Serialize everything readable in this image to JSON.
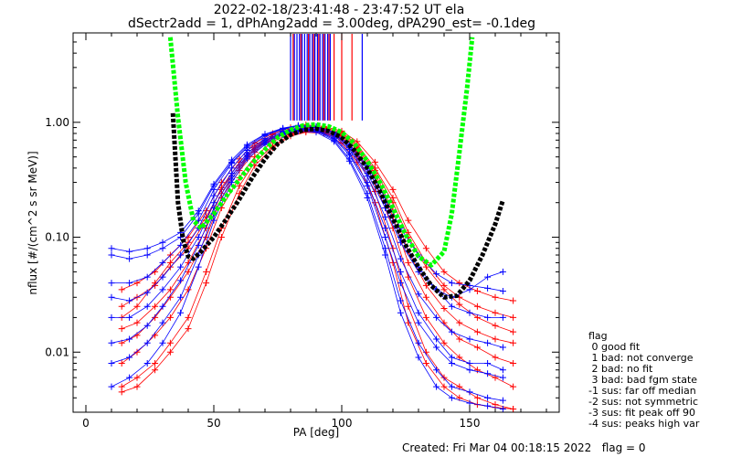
{
  "chart_data": {
    "type": "line",
    "title_line1": "2022-02-18/23:41:48 - 23:47:52 UT ela",
    "title_line2": "dSectr2add = 1, dPhAng2add = 3.00deg, dPA290_est=  -0.1deg",
    "xlabel": "PA [deg]",
    "ylabel": "nflux [#/(cm^2 s sr MeV)]",
    "xlim": [
      -5,
      185
    ],
    "ylim": [
      0.003,
      6.0
    ],
    "y_scale": "log",
    "x_ticks": [
      0,
      50,
      100,
      150
    ],
    "y_ticks": [
      {
        "value": 0.01,
        "label": "0.01"
      },
      {
        "value": 0.1,
        "label": "0.10"
      },
      {
        "value": 1.0,
        "label": "1.00"
      }
    ],
    "series": [
      {
        "color": "#ff0000",
        "marker": "plus",
        "style": "thin lines, many sectors",
        "pa": [
          14,
          20,
          27,
          33,
          40,
          47,
          53,
          60,
          66,
          73,
          80,
          86,
          93,
          100,
          106,
          113,
          120,
          126,
          133,
          140,
          146,
          153,
          160,
          167
        ],
        "profiles": [
          [
            0.02,
            0.025,
            0.04,
            0.06,
            0.09,
            0.15,
            0.26,
            0.42,
            0.6,
            0.75,
            0.85,
            0.9,
            0.88,
            0.8,
            0.62,
            0.38,
            0.2,
            0.1,
            0.055,
            0.035,
            0.026,
            0.02,
            0.017,
            0.015
          ],
          [
            0.008,
            0.01,
            0.014,
            0.02,
            0.035,
            0.08,
            0.18,
            0.33,
            0.5,
            0.68,
            0.8,
            0.86,
            0.84,
            0.74,
            0.55,
            0.3,
            0.12,
            0.045,
            0.02,
            0.012,
            0.009,
            0.007,
            0.006,
            0.005
          ],
          [
            0.005,
            0.006,
            0.008,
            0.012,
            0.02,
            0.05,
            0.12,
            0.28,
            0.45,
            0.62,
            0.78,
            0.84,
            0.82,
            0.7,
            0.5,
            0.25,
            0.08,
            0.025,
            0.01,
            0.006,
            0.005,
            0.004,
            0.0035,
            0.0032
          ],
          [
            0.035,
            0.04,
            0.05,
            0.07,
            0.1,
            0.17,
            0.3,
            0.48,
            0.66,
            0.8,
            0.9,
            0.95,
            0.92,
            0.84,
            0.68,
            0.45,
            0.26,
            0.14,
            0.08,
            0.05,
            0.04,
            0.034,
            0.03,
            0.028
          ],
          [
            0.012,
            0.014,
            0.02,
            0.03,
            0.05,
            0.1,
            0.22,
            0.38,
            0.55,
            0.72,
            0.83,
            0.88,
            0.86,
            0.76,
            0.58,
            0.34,
            0.15,
            0.06,
            0.03,
            0.018,
            0.013,
            0.011,
            0.009,
            0.008
          ],
          [
            0.0045,
            0.005,
            0.007,
            0.01,
            0.016,
            0.04,
            0.1,
            0.24,
            0.42,
            0.6,
            0.76,
            0.82,
            0.8,
            0.66,
            0.45,
            0.2,
            0.06,
            0.018,
            0.008,
            0.005,
            0.004,
            0.0035,
            0.0033,
            0.0032
          ],
          [
            0.025,
            0.03,
            0.038,
            0.055,
            0.08,
            0.14,
            0.27,
            0.45,
            0.62,
            0.78,
            0.87,
            0.92,
            0.9,
            0.82,
            0.64,
            0.4,
            0.22,
            0.11,
            0.06,
            0.038,
            0.03,
            0.025,
            0.022,
            0.02
          ],
          [
            0.016,
            0.018,
            0.025,
            0.035,
            0.06,
            0.12,
            0.24,
            0.4,
            0.58,
            0.74,
            0.85,
            0.9,
            0.88,
            0.78,
            0.6,
            0.36,
            0.17,
            0.075,
            0.038,
            0.024,
            0.018,
            0.015,
            0.013,
            0.012
          ]
        ]
      },
      {
        "color": "#0000ff",
        "marker": "plus",
        "style": "thin lines, many sectors",
        "pa": [
          10,
          17,
          24,
          30,
          37,
          44,
          50,
          57,
          63,
          70,
          77,
          83,
          90,
          97,
          103,
          110,
          117,
          123,
          130,
          137,
          143,
          150,
          157,
          163
        ],
        "profiles": [
          [
            0.07,
            0.065,
            0.07,
            0.08,
            0.1,
            0.16,
            0.28,
            0.45,
            0.62,
            0.78,
            0.88,
            0.93,
            0.9,
            0.8,
            0.6,
            0.36,
            0.18,
            0.09,
            0.05,
            0.035,
            0.03,
            0.035,
            0.045,
            0.05
          ],
          [
            0.02,
            0.02,
            0.025,
            0.035,
            0.055,
            0.1,
            0.2,
            0.36,
            0.54,
            0.7,
            0.82,
            0.88,
            0.86,
            0.74,
            0.54,
            0.3,
            0.12,
            0.05,
            0.022,
            0.013,
            0.009,
            0.008,
            0.008,
            0.007
          ],
          [
            0.008,
            0.009,
            0.012,
            0.018,
            0.03,
            0.07,
            0.16,
            0.32,
            0.5,
            0.66,
            0.8,
            0.86,
            0.84,
            0.7,
            0.48,
            0.24,
            0.08,
            0.028,
            0.012,
            0.007,
            0.005,
            0.0045,
            0.004,
            0.0038
          ],
          [
            0.04,
            0.04,
            0.045,
            0.06,
            0.085,
            0.14,
            0.26,
            0.44,
            0.6,
            0.76,
            0.87,
            0.92,
            0.9,
            0.8,
            0.62,
            0.4,
            0.2,
            0.1,
            0.055,
            0.035,
            0.025,
            0.022,
            0.02,
            0.02
          ],
          [
            0.005,
            0.006,
            0.008,
            0.012,
            0.022,
            0.055,
            0.14,
            0.3,
            0.48,
            0.64,
            0.78,
            0.84,
            0.82,
            0.68,
            0.46,
            0.22,
            0.07,
            0.022,
            0.009,
            0.005,
            0.004,
            0.0036,
            0.0034,
            0.0032
          ],
          [
            0.012,
            0.013,
            0.017,
            0.025,
            0.042,
            0.085,
            0.18,
            0.34,
            0.52,
            0.68,
            0.81,
            0.87,
            0.85,
            0.72,
            0.52,
            0.28,
            0.1,
            0.04,
            0.018,
            0.011,
            0.008,
            0.007,
            0.0065,
            0.006
          ],
          [
            0.08,
            0.075,
            0.08,
            0.09,
            0.11,
            0.17,
            0.29,
            0.47,
            0.64,
            0.79,
            0.89,
            0.94,
            0.92,
            0.82,
            0.64,
            0.42,
            0.22,
            0.12,
            0.07,
            0.048,
            0.04,
            0.038,
            0.036,
            0.034
          ],
          [
            0.03,
            0.028,
            0.033,
            0.045,
            0.07,
            0.12,
            0.23,
            0.4,
            0.57,
            0.72,
            0.84,
            0.89,
            0.87,
            0.77,
            0.58,
            0.34,
            0.15,
            0.065,
            0.032,
            0.02,
            0.015,
            0.013,
            0.012,
            0.011
          ]
        ]
      },
      {
        "color": "#000000",
        "style": "thick dashed",
        "pa": [
          34,
          36,
          38,
          40,
          42,
          45,
          50,
          55,
          60,
          65,
          70,
          75,
          80,
          85,
          90,
          95,
          100,
          105,
          110,
          115,
          120,
          125,
          130,
          135,
          140,
          145,
          150,
          155,
          160,
          163
        ],
        "values": [
          1.2,
          0.2,
          0.095,
          0.068,
          0.065,
          0.075,
          0.1,
          0.145,
          0.215,
          0.33,
          0.48,
          0.65,
          0.78,
          0.86,
          0.88,
          0.84,
          0.74,
          0.57,
          0.4,
          0.25,
          0.145,
          0.085,
          0.055,
          0.038,
          0.03,
          0.031,
          0.042,
          0.07,
          0.13,
          0.21
        ]
      },
      {
        "color": "#00ff00",
        "style": "thick dashed",
        "pa": [
          33,
          36,
          39,
          42,
          45,
          50,
          55,
          60,
          65,
          70,
          75,
          80,
          85,
          90,
          95,
          100,
          105,
          110,
          115,
          120,
          125,
          130,
          135,
          140,
          143,
          146,
          149,
          151
        ],
        "values": [
          5.5,
          1.1,
          0.3,
          0.14,
          0.12,
          0.16,
          0.23,
          0.32,
          0.44,
          0.58,
          0.74,
          0.86,
          0.94,
          0.96,
          0.92,
          0.82,
          0.65,
          0.46,
          0.3,
          0.18,
          0.105,
          0.068,
          0.057,
          0.075,
          0.16,
          0.55,
          2.0,
          5.5
        ]
      }
    ],
    "top_lines": {
      "red_pa": [
        81,
        84,
        87,
        89,
        91,
        93,
        95,
        97,
        100,
        104
      ],
      "blue_pa": [
        80,
        81.5,
        82.5,
        83.5,
        84.5,
        85.5,
        86.5,
        87.5,
        88.5,
        89.5,
        90.5,
        91.5,
        92.5,
        93.5,
        94.5,
        95.5,
        108
      ]
    },
    "legend": {
      "title": "flag",
      "items": [
        " 0 good fit",
        " 1 bad: not converge",
        " 2 bad: no fit",
        " 3 bad: bad fgm state",
        "-1 sus: far off median",
        "-2 sus: not symmetric",
        "-3 sus: fit peak off 90",
        "-4 sus: peaks high var"
      ]
    },
    "footer": "Created: Fri Mar 04 00:18:15 2022   flag = 0"
  }
}
